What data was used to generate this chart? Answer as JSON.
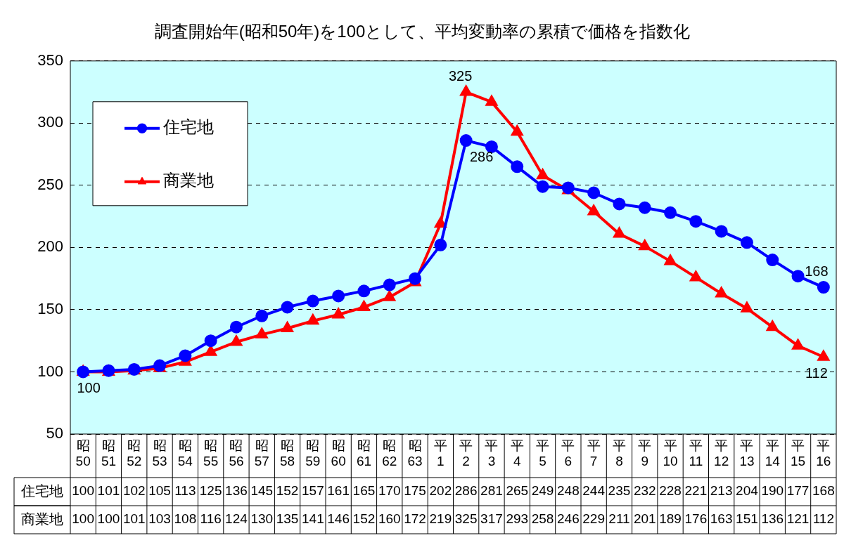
{
  "chart_data": {
    "type": "line",
    "title": "調査開始年(昭和50年)を100として、平均変動率の累積で価格を指数化",
    "categories": [
      "昭50",
      "昭51",
      "昭52",
      "昭53",
      "昭54",
      "昭55",
      "昭56",
      "昭57",
      "昭58",
      "昭59",
      "昭60",
      "昭61",
      "昭62",
      "昭63",
      "平1",
      "平2",
      "平3",
      "平4",
      "平5",
      "平6",
      "平7",
      "平8",
      "平9",
      "平10",
      "平11",
      "平12",
      "平13",
      "平14",
      "平15",
      "平16"
    ],
    "series": [
      {
        "name": "住宅地",
        "color": "#0000ff",
        "marker": "circle",
        "values": [
          100,
          101,
          102,
          105,
          113,
          125,
          136,
          145,
          152,
          157,
          161,
          165,
          170,
          175,
          202,
          286,
          281,
          265,
          249,
          248,
          244,
          235,
          232,
          228,
          221,
          213,
          204,
          190,
          177,
          168
        ]
      },
      {
        "name": "商業地",
        "color": "#ff0000",
        "marker": "triangle",
        "values": [
          100,
          100,
          101,
          103,
          108,
          116,
          124,
          130,
          135,
          141,
          146,
          152,
          160,
          172,
          219,
          325,
          317,
          293,
          258,
          246,
          229,
          211,
          201,
          189,
          176,
          163,
          151,
          136,
          121,
          112
        ]
      }
    ],
    "annotations": [
      {
        "text": "100",
        "x": "昭50",
        "y": 100
      },
      {
        "text": "325",
        "x": "平2",
        "y": 325
      },
      {
        "text": "286",
        "x": "平2",
        "y": 286
      },
      {
        "text": "168",
        "x": "平16",
        "y": 168
      },
      {
        "text": "112",
        "x": "平16",
        "y": 112
      }
    ],
    "ylim": [
      50,
      350
    ],
    "yticks": [
      50,
      100,
      150,
      200,
      250,
      300,
      350
    ],
    "grid": "y",
    "line_style": "solid",
    "legend": "top left",
    "data_labels": true
  }
}
